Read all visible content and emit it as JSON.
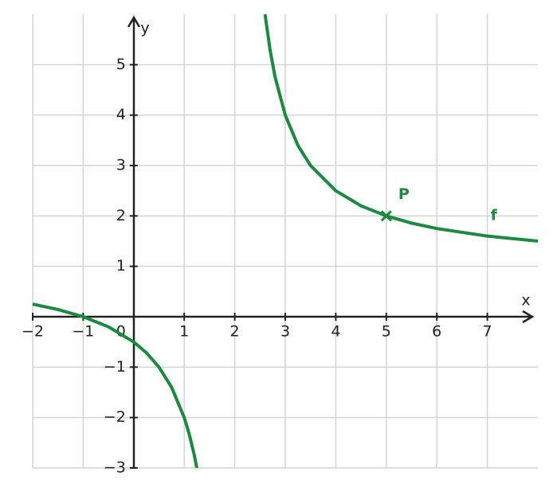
{
  "chart_data": {
    "type": "line",
    "xlabel": "x",
    "ylabel": "y",
    "xlim": [
      -2,
      8
    ],
    "ylim": [
      -3,
      6
    ],
    "xticks": [
      {
        "value": -2,
        "label": "−2"
      },
      {
        "value": -1,
        "label": "−1"
      },
      0,
      1,
      2,
      3,
      4,
      5,
      6,
      7
    ],
    "yticks": [
      {
        "value": -3,
        "label": "−3"
      },
      {
        "value": -2,
        "label": "−2"
      },
      {
        "value": -1,
        "label": "−1"
      },
      1,
      2,
      3,
      4,
      5
    ],
    "grid": true,
    "x": [
      -2,
      -1.5,
      -1,
      -0.5,
      0,
      0.25,
      0.5,
      0.75,
      1,
      1.1,
      1.2,
      1.25,
      2,
      2.6,
      2.7,
      2.8,
      3,
      3.25,
      3.5,
      4,
      4.5,
      5,
      5.5,
      6,
      7,
      8
    ],
    "series": [
      {
        "name": "f",
        "color": "#1a8a3e",
        "values": [
          0.25,
          0.143,
          0,
          -0.2,
          -0.5,
          -0.714,
          -1,
          -1.4,
          -2,
          -2.333,
          -2.75,
          -3,
          null,
          6,
          5.286,
          4.75,
          4,
          3.4,
          3,
          2.5,
          2.2,
          2,
          1.857,
          1.75,
          1.6,
          1.5
        ]
      }
    ],
    "point": {
      "label": "P",
      "x": 5,
      "y": 2
    }
  }
}
